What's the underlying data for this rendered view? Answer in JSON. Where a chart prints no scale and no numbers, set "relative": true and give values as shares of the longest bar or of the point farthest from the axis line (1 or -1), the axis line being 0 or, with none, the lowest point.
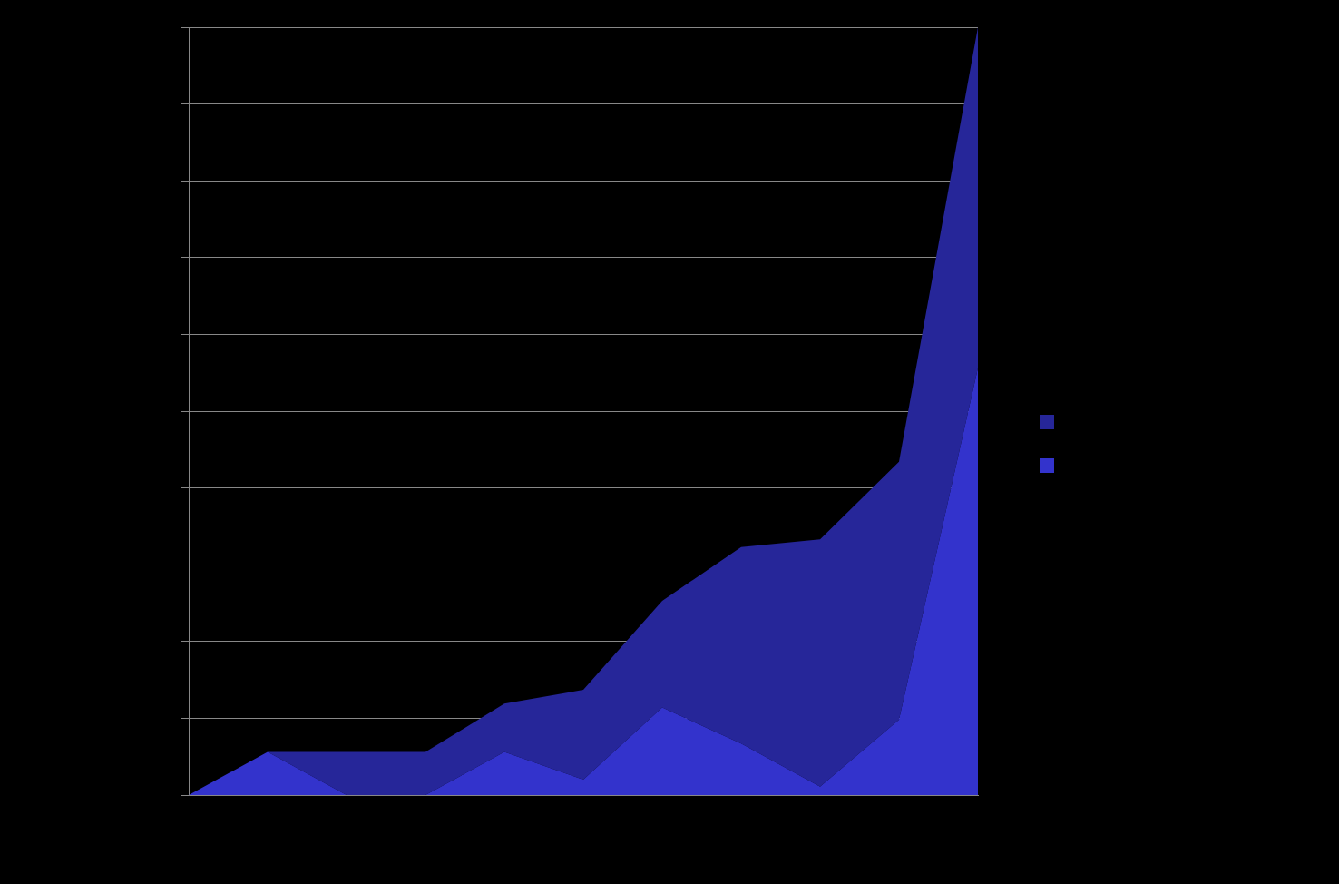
{
  "chart_data": {
    "type": "area",
    "relative": true,
    "stacked": true,
    "grid": "y",
    "categories": [
      null,
      null,
      null,
      null,
      null,
      null,
      null,
      null,
      null,
      null,
      null
    ],
    "series": [
      {
        "color": "#3333cc",
        "values": [
          0,
          0.056,
          0,
          0,
          0.056,
          0.02,
          0.114,
          0.067,
          0.011,
          0.098,
          0.556
        ]
      },
      {
        "color": "#262699",
        "values": [
          0,
          0,
          0.056,
          0.056,
          0.063,
          0.117,
          0.139,
          0.256,
          0.322,
          0.336,
          0.444
        ]
      }
    ]
  }
}
